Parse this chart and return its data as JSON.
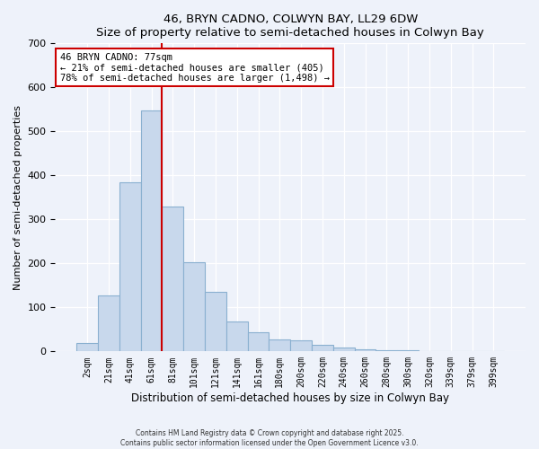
{
  "title": "46, BRYN CADNO, COLWYN BAY, LL29 6DW",
  "subtitle": "Size of property relative to semi-detached houses in Colwyn Bay",
  "xlabel": "Distribution of semi-detached houses by size in Colwyn Bay",
  "ylabel": "Number of semi-detached properties",
  "bar_labels": [
    "2sqm",
    "21sqm",
    "41sqm",
    "61sqm",
    "81sqm",
    "101sqm",
    "121sqm",
    "141sqm",
    "161sqm",
    "180sqm",
    "200sqm",
    "220sqm",
    "240sqm",
    "260sqm",
    "280sqm",
    "300sqm",
    "320sqm",
    "339sqm",
    "379sqm",
    "399sqm"
  ],
  "bar_values": [
    20,
    128,
    385,
    548,
    330,
    203,
    135,
    68,
    43,
    28,
    25,
    15,
    8,
    5,
    2,
    2,
    1,
    1,
    0,
    0
  ],
  "bar_color": "#c8d8ec",
  "bar_edgecolor": "#8ab0d0",
  "vline_x": 3.5,
  "vline_color": "#cc0000",
  "annotation_line1": "46 BRYN CADNO: 77sqm",
  "annotation_line2": "← 21% of semi-detached houses are smaller (405)",
  "annotation_line3": "78% of semi-detached houses are larger (1,498) →",
  "annotation_box_color": "#ffffff",
  "annotation_box_edgecolor": "#cc0000",
  "ylim": [
    0,
    700
  ],
  "yticks": [
    0,
    100,
    200,
    300,
    400,
    500,
    600,
    700
  ],
  "background_color": "#eef2fa",
  "grid_color": "#ffffff",
  "footer1": "Contains HM Land Registry data © Crown copyright and database right 2025.",
  "footer2": "Contains public sector information licensed under the Open Government Licence v3.0."
}
